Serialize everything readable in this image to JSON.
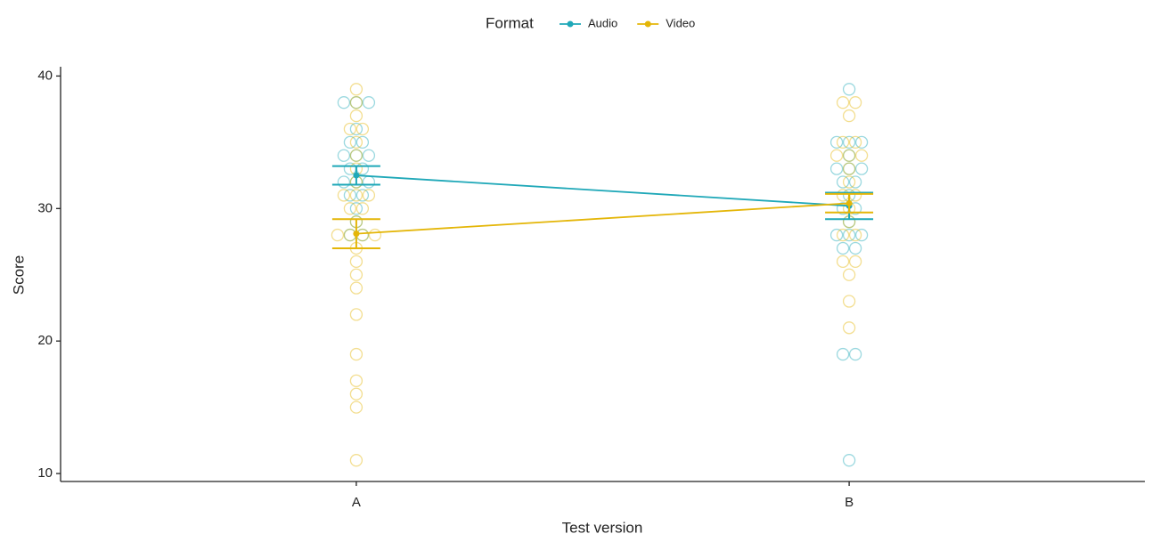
{
  "chart_data": {
    "type": "dotplot",
    "x_label": "Test version",
    "y_label": "Score",
    "legend_title": "Format",
    "categories": [
      "A",
      "B"
    ],
    "ylim": [
      9.4,
      40.7
    ],
    "yticks": [
      10,
      20,
      30,
      40
    ],
    "series": [
      {
        "name": "Audio",
        "color": "#1fa8b8",
        "means": [
          32.5,
          30.2
        ],
        "errors": [
          0.7,
          1.0
        ],
        "points": [
          [
            38,
            38,
            38,
            36,
            35,
            35,
            34,
            34,
            34,
            33,
            33,
            32,
            32,
            32,
            31,
            31,
            30,
            29,
            28,
            28
          ],
          [
            39,
            35,
            35,
            35,
            34,
            33,
            33,
            33,
            32,
            32,
            31,
            30,
            30,
            29,
            28,
            28,
            28,
            27,
            27,
            19,
            19,
            11
          ]
        ]
      },
      {
        "name": "Video",
        "color": "#e4b608",
        "means": [
          28.1,
          30.4
        ],
        "errors": [
          1.1,
          0.7
        ],
        "points": [
          [
            39,
            38,
            37,
            36,
            36,
            35,
            34,
            33,
            32,
            31,
            31,
            31,
            30,
            30,
            29,
            28,
            28,
            28,
            28,
            27,
            26,
            25,
            24,
            22,
            19,
            17,
            16,
            15,
            11
          ],
          [
            38,
            38,
            37,
            35,
            35,
            34,
            34,
            34,
            33,
            32,
            31,
            31,
            30,
            29,
            28,
            28,
            26,
            26,
            25,
            23,
            21
          ]
        ]
      }
    ]
  }
}
